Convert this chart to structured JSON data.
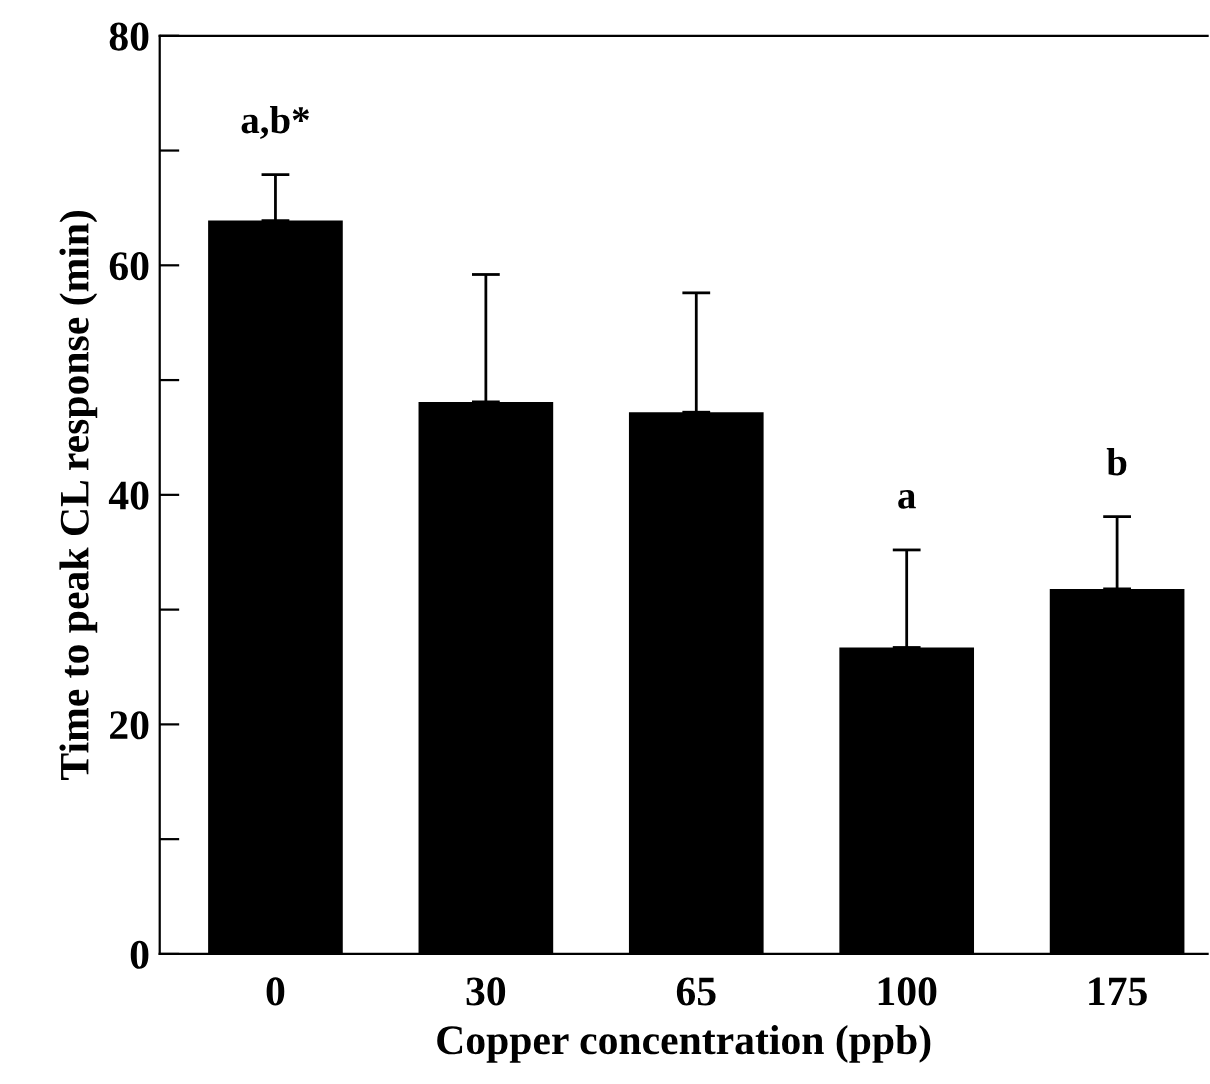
{
  "chart_data": {
    "type": "bar",
    "xlabel": "Copper concentration (ppb)",
    "ylabel": "Time to peak CL response (min)",
    "categories": [
      "0",
      "30",
      "65",
      "100",
      "175"
    ],
    "values": [
      63.9,
      48.1,
      47.2,
      26.7,
      31.8
    ],
    "errors": [
      [
        63.9,
        67.9
      ],
      [
        48.1,
        59.2
      ],
      [
        47.2,
        57.6
      ],
      [
        26.7,
        35.2
      ],
      [
        31.8,
        38.1
      ]
    ],
    "color": "#000000",
    "ylim": [
      0,
      80
    ],
    "yticks": [
      0,
      {
        "value": 10,
        "label": null
      },
      20,
      {
        "value": 30,
        "label": null
      },
      40,
      {
        "value": 50,
        "label": null
      },
      60,
      {
        "value": 70,
        "label": null
      },
      80
    ],
    "grid": false,
    "annotations": [
      {
        "text": "a,b*",
        "x": "0",
        "y": 67.9
      },
      {
        "text": "a",
        "x": "100",
        "y": 35.2
      },
      {
        "text": "b",
        "x": "175",
        "y": 38.1
      }
    ]
  }
}
